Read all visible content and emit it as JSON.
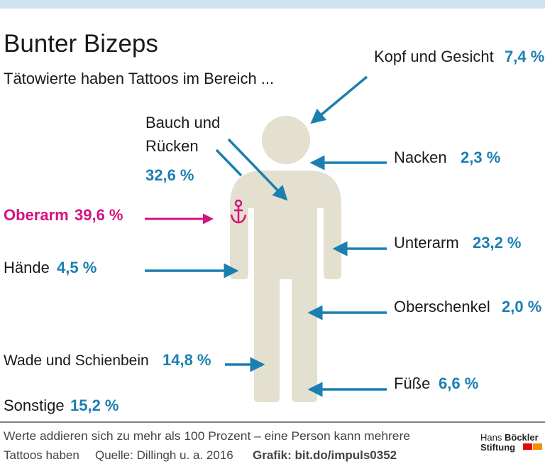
{
  "header": {
    "title": "Bunter Bizeps",
    "subtitle": "Tätowierte haben Tattoos im Bereich ..."
  },
  "colors": {
    "accent": "#1b7fb1",
    "highlight": "#d5127f",
    "body": "#e3e0cf",
    "top_bar": "#cfe3ee"
  },
  "labels": {
    "kopf": {
      "name": "Kopf und Gesicht",
      "value": "7,4 %"
    },
    "nacken": {
      "name": "Nacken",
      "value": "2,3 %"
    },
    "bauch": {
      "name_line1": "Bauch und",
      "name_line2": "Rücken",
      "value": "32,6 %"
    },
    "oberarm": {
      "name": "Oberarm",
      "value": "39,6 %",
      "icon": "anchor-icon"
    },
    "haende": {
      "name": "Hände",
      "value": "4,5 %"
    },
    "unterarm": {
      "name": "Unterarm",
      "value": "23,2 %"
    },
    "oberschenkel": {
      "name": "Oberschenkel",
      "value": "2,0 %"
    },
    "wade": {
      "name": "Wade und Schienbein",
      "value": "14,8 %"
    },
    "fuesse": {
      "name": "Füße",
      "value": "6,6 %"
    },
    "sonstige": {
      "name": "Sonstige",
      "value": "15,2 %"
    }
  },
  "footer": {
    "note_line1": "Werte addieren sich zu mehr als 100 Prozent – eine Person kann mehrere",
    "note_line2": "Tattoos haben",
    "source": "Quelle: Dillingh u. a. 2016",
    "grafik": "Grafik: bit.do/impuls0352",
    "logo_line1_a": "Hans",
    "logo_line1_b": "Böckler",
    "logo_line2": "Stiftung"
  }
}
